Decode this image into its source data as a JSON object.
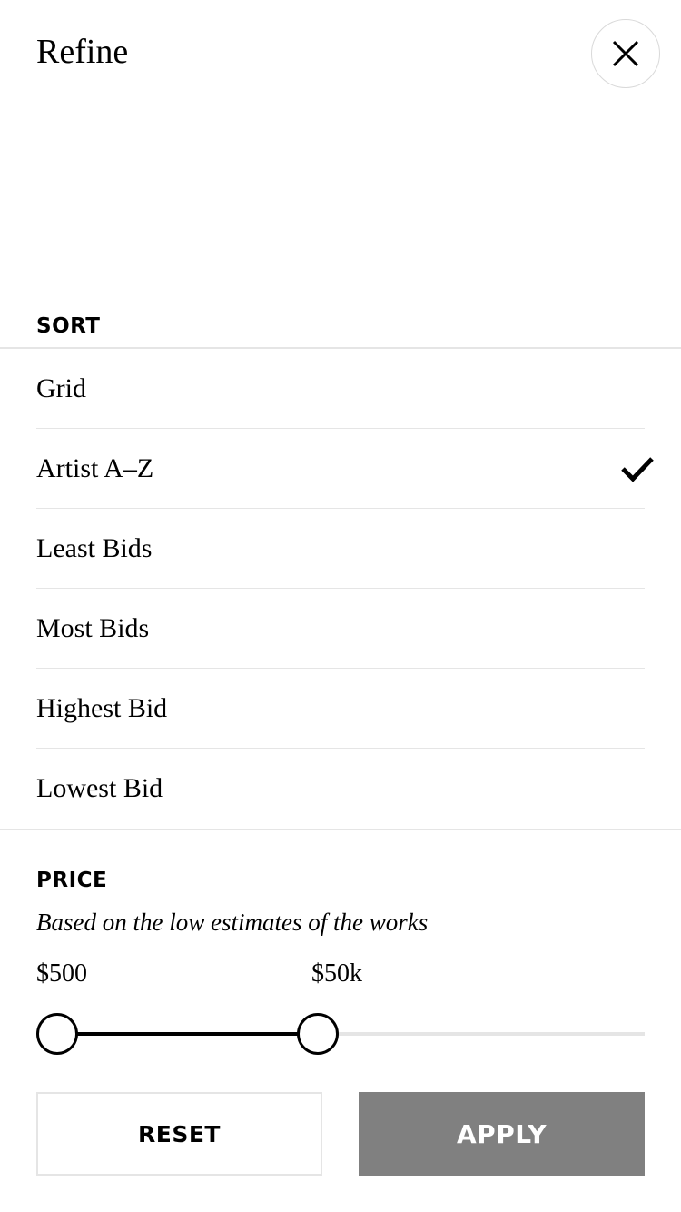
{
  "header": {
    "title": "Refine",
    "close_icon": "close-icon"
  },
  "sort": {
    "label": "SORT",
    "options": [
      "Grid",
      "Artist A–Z",
      "Least Bids",
      "Most Bids",
      "Highest Bid",
      "Lowest Bid"
    ],
    "selected": "Artist A–Z",
    "selected_icon": "checkmark-icon"
  },
  "price": {
    "label": "PRICE",
    "subtitle": "Based on the low estimates of the works",
    "min_label": "$500",
    "max_label": "$50k",
    "range_fraction": [
      0.0,
      0.46
    ]
  },
  "actions": {
    "reset_label": "RESET",
    "apply_label": "APPLY"
  },
  "colors": {
    "apply_bg": "#808080",
    "divider": "#e5e5e5",
    "text": "#000000"
  }
}
